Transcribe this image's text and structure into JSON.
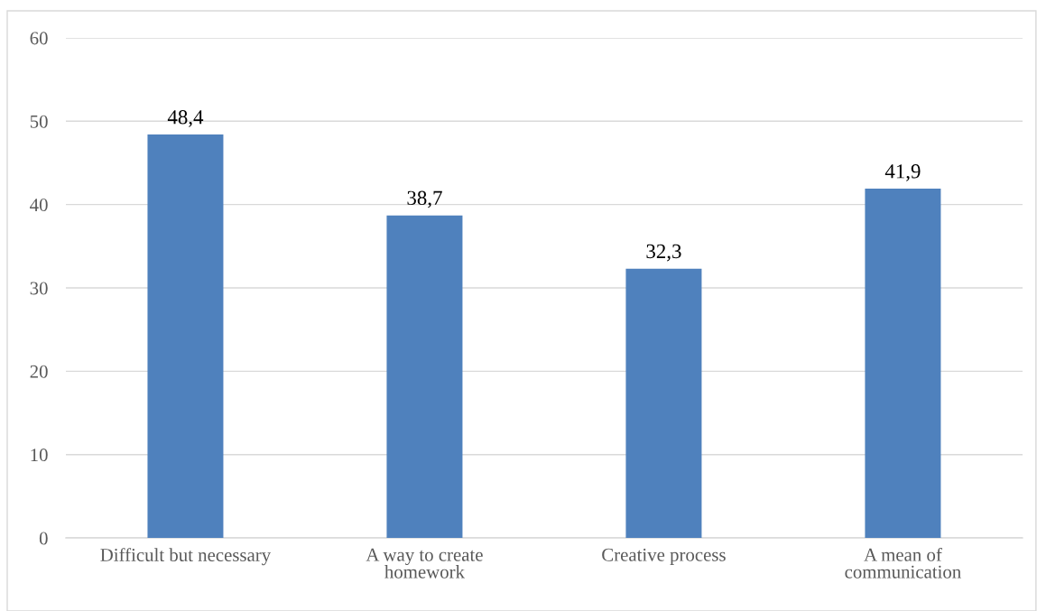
{
  "chart_data": {
    "type": "bar",
    "categories": [
      "Difficult but necessary",
      "A way to create homework",
      "Creative process",
      "A mean of communication"
    ],
    "values": [
      48.4,
      38.7,
      32.3,
      41.9
    ],
    "color": "#4f81bd",
    "value_labels": [
      "48,4",
      "38,7",
      "32,3",
      "41,9"
    ],
    "ylim": [
      0,
      60
    ],
    "yticks": [
      0,
      10,
      20,
      30,
      40,
      50,
      60
    ],
    "grid": "y"
  }
}
